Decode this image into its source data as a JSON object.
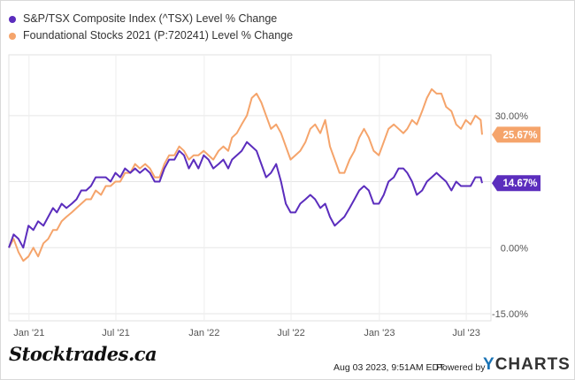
{
  "chart_data": {
    "type": "line",
    "legend_position": "top-left",
    "grid": "horizontal",
    "ylim": [
      -15,
      40
    ],
    "xlim": [
      "2020-11-20",
      "2023-08-03"
    ],
    "y_ticks": [
      {
        "value": 30,
        "label": "30.00%"
      },
      {
        "value": 15,
        "label": "15.00%"
      },
      {
        "value": 0,
        "label": "0.00%"
      },
      {
        "value": -15,
        "label": "-15.00%"
      }
    ],
    "x_ticks": [
      {
        "date": "2021-01-01",
        "label": "Jan '21"
      },
      {
        "date": "2021-07-01",
        "label": "Jul '21"
      },
      {
        "date": "2022-01-01",
        "label": "Jan '22"
      },
      {
        "date": "2022-07-01",
        "label": "Jul '22"
      },
      {
        "date": "2023-01-01",
        "label": "Jan '23"
      },
      {
        "date": "2023-07-01",
        "label": "Jul '23"
      }
    ],
    "series": [
      {
        "name": "S&P/TSX Composite Index (^TSX) Level % Change",
        "color": "#5b2dbd",
        "end_label": "14.67%",
        "points": [
          [
            "2020-11-20",
            0
          ],
          [
            "2020-11-30",
            3
          ],
          [
            "2020-12-10",
            2
          ],
          [
            "2020-12-20",
            0
          ],
          [
            "2020-12-31",
            5
          ],
          [
            "2021-01-10",
            4
          ],
          [
            "2021-01-20",
            6
          ],
          [
            "2021-01-31",
            5
          ],
          [
            "2021-02-10",
            7
          ],
          [
            "2021-02-20",
            9
          ],
          [
            "2021-02-28",
            8
          ],
          [
            "2021-03-10",
            10
          ],
          [
            "2021-03-20",
            9
          ],
          [
            "2021-03-31",
            10
          ],
          [
            "2021-04-10",
            11
          ],
          [
            "2021-04-20",
            13
          ],
          [
            "2021-04-30",
            13
          ],
          [
            "2021-05-10",
            14
          ],
          [
            "2021-05-20",
            16
          ],
          [
            "2021-05-31",
            16
          ],
          [
            "2021-06-10",
            16
          ],
          [
            "2021-06-20",
            15
          ],
          [
            "2021-06-30",
            17
          ],
          [
            "2021-07-10",
            16
          ],
          [
            "2021-07-20",
            18
          ],
          [
            "2021-07-31",
            17
          ],
          [
            "2021-08-10",
            18
          ],
          [
            "2021-08-20",
            17
          ],
          [
            "2021-08-31",
            18
          ],
          [
            "2021-09-10",
            17
          ],
          [
            "2021-09-20",
            15
          ],
          [
            "2021-09-30",
            15
          ],
          [
            "2021-10-10",
            18
          ],
          [
            "2021-10-20",
            20
          ],
          [
            "2021-10-31",
            20
          ],
          [
            "2021-11-10",
            22
          ],
          [
            "2021-11-20",
            21
          ],
          [
            "2021-11-30",
            18
          ],
          [
            "2021-12-10",
            20
          ],
          [
            "2021-12-20",
            18
          ],
          [
            "2021-12-31",
            21
          ],
          [
            "2022-01-10",
            20
          ],
          [
            "2022-01-20",
            18
          ],
          [
            "2022-01-31",
            19
          ],
          [
            "2022-02-10",
            20
          ],
          [
            "2022-02-20",
            18
          ],
          [
            "2022-02-28",
            20
          ],
          [
            "2022-03-10",
            21
          ],
          [
            "2022-03-20",
            22
          ],
          [
            "2022-03-31",
            24
          ],
          [
            "2022-04-10",
            23
          ],
          [
            "2022-04-20",
            22
          ],
          [
            "2022-04-30",
            19
          ],
          [
            "2022-05-10",
            16
          ],
          [
            "2022-05-20",
            17
          ],
          [
            "2022-05-31",
            19
          ],
          [
            "2022-06-10",
            15
          ],
          [
            "2022-06-20",
            10
          ],
          [
            "2022-06-30",
            8
          ],
          [
            "2022-07-10",
            8
          ],
          [
            "2022-07-20",
            10
          ],
          [
            "2022-07-31",
            11
          ],
          [
            "2022-08-10",
            12
          ],
          [
            "2022-08-20",
            11
          ],
          [
            "2022-08-31",
            9
          ],
          [
            "2022-09-10",
            10
          ],
          [
            "2022-09-20",
            7
          ],
          [
            "2022-09-30",
            5
          ],
          [
            "2022-10-10",
            6
          ],
          [
            "2022-10-20",
            7
          ],
          [
            "2022-10-31",
            9
          ],
          [
            "2022-11-10",
            11
          ],
          [
            "2022-11-20",
            13
          ],
          [
            "2022-11-30",
            14
          ],
          [
            "2022-12-10",
            13
          ],
          [
            "2022-12-20",
            10
          ],
          [
            "2022-12-31",
            10
          ],
          [
            "2023-01-10",
            12
          ],
          [
            "2023-01-20",
            15
          ],
          [
            "2023-01-31",
            16
          ],
          [
            "2023-02-10",
            18
          ],
          [
            "2023-02-20",
            18
          ],
          [
            "2023-02-28",
            17
          ],
          [
            "2023-03-10",
            15
          ],
          [
            "2023-03-20",
            12
          ],
          [
            "2023-03-31",
            13
          ],
          [
            "2023-04-10",
            15
          ],
          [
            "2023-04-20",
            16
          ],
          [
            "2023-04-30",
            17
          ],
          [
            "2023-05-10",
            16
          ],
          [
            "2023-05-20",
            15
          ],
          [
            "2023-05-31",
            13
          ],
          [
            "2023-06-10",
            15
          ],
          [
            "2023-06-20",
            14
          ],
          [
            "2023-06-30",
            14
          ],
          [
            "2023-07-10",
            14
          ],
          [
            "2023-07-20",
            16
          ],
          [
            "2023-07-31",
            16
          ],
          [
            "2023-08-03",
            14.67
          ]
        ]
      },
      {
        "name": "Foundational Stocks 2021 (P:720241) Level % Change",
        "color": "#f5a46b",
        "end_label": "25.67%",
        "points": [
          [
            "2020-11-20",
            0
          ],
          [
            "2020-11-30",
            2
          ],
          [
            "2020-12-10",
            -1
          ],
          [
            "2020-12-20",
            -3
          ],
          [
            "2020-12-31",
            -2
          ],
          [
            "2021-01-10",
            0
          ],
          [
            "2021-01-20",
            -2
          ],
          [
            "2021-01-31",
            1
          ],
          [
            "2021-02-10",
            2
          ],
          [
            "2021-02-20",
            4
          ],
          [
            "2021-02-28",
            4
          ],
          [
            "2021-03-10",
            6
          ],
          [
            "2021-03-20",
            7
          ],
          [
            "2021-03-31",
            8
          ],
          [
            "2021-04-10",
            9
          ],
          [
            "2021-04-20",
            10
          ],
          [
            "2021-04-30",
            11
          ],
          [
            "2021-05-10",
            11
          ],
          [
            "2021-05-20",
            13
          ],
          [
            "2021-05-31",
            12
          ],
          [
            "2021-06-10",
            14
          ],
          [
            "2021-06-20",
            14
          ],
          [
            "2021-06-30",
            15
          ],
          [
            "2021-07-10",
            15
          ],
          [
            "2021-07-20",
            17
          ],
          [
            "2021-07-31",
            17
          ],
          [
            "2021-08-10",
            19
          ],
          [
            "2021-08-20",
            18
          ],
          [
            "2021-08-31",
            19
          ],
          [
            "2021-09-10",
            18
          ],
          [
            "2021-09-20",
            16
          ],
          [
            "2021-09-30",
            16
          ],
          [
            "2021-10-10",
            19
          ],
          [
            "2021-10-20",
            21
          ],
          [
            "2021-10-31",
            21
          ],
          [
            "2021-11-10",
            23
          ],
          [
            "2021-11-20",
            22
          ],
          [
            "2021-11-30",
            20
          ],
          [
            "2021-12-10",
            21
          ],
          [
            "2021-12-20",
            21
          ],
          [
            "2021-12-31",
            22
          ],
          [
            "2022-01-10",
            21
          ],
          [
            "2022-01-20",
            20
          ],
          [
            "2022-01-31",
            22
          ],
          [
            "2022-02-10",
            23
          ],
          [
            "2022-02-20",
            22
          ],
          [
            "2022-02-28",
            25
          ],
          [
            "2022-03-10",
            26
          ],
          [
            "2022-03-20",
            28
          ],
          [
            "2022-03-31",
            30
          ],
          [
            "2022-04-10",
            34
          ],
          [
            "2022-04-20",
            35
          ],
          [
            "2022-04-30",
            33
          ],
          [
            "2022-05-10",
            30
          ],
          [
            "2022-05-20",
            27
          ],
          [
            "2022-05-31",
            28
          ],
          [
            "2022-06-10",
            26
          ],
          [
            "2022-06-20",
            23
          ],
          [
            "2022-06-30",
            20
          ],
          [
            "2022-07-10",
            21
          ],
          [
            "2022-07-20",
            22
          ],
          [
            "2022-07-31",
            24
          ],
          [
            "2022-08-10",
            27
          ],
          [
            "2022-08-20",
            28
          ],
          [
            "2022-08-31",
            26
          ],
          [
            "2022-09-10",
            29
          ],
          [
            "2022-09-20",
            23
          ],
          [
            "2022-09-30",
            20
          ],
          [
            "2022-10-10",
            17
          ],
          [
            "2022-10-20",
            17
          ],
          [
            "2022-10-31",
            20
          ],
          [
            "2022-11-10",
            22
          ],
          [
            "2022-11-20",
            25
          ],
          [
            "2022-11-30",
            27
          ],
          [
            "2022-12-10",
            25
          ],
          [
            "2022-12-20",
            22
          ],
          [
            "2022-12-31",
            21
          ],
          [
            "2023-01-10",
            24
          ],
          [
            "2023-01-20",
            27
          ],
          [
            "2023-01-31",
            28
          ],
          [
            "2023-02-10",
            27
          ],
          [
            "2023-02-20",
            26
          ],
          [
            "2023-02-28",
            27
          ],
          [
            "2023-03-10",
            29
          ],
          [
            "2023-03-20",
            28
          ],
          [
            "2023-03-31",
            31
          ],
          [
            "2023-04-10",
            34
          ],
          [
            "2023-04-20",
            36
          ],
          [
            "2023-04-30",
            35
          ],
          [
            "2023-05-10",
            35
          ],
          [
            "2023-05-20",
            32
          ],
          [
            "2023-05-31",
            31
          ],
          [
            "2023-06-10",
            28
          ],
          [
            "2023-06-20",
            27
          ],
          [
            "2023-06-30",
            29
          ],
          [
            "2023-07-10",
            28
          ],
          [
            "2023-07-20",
            30
          ],
          [
            "2023-07-31",
            29
          ],
          [
            "2023-08-03",
            25.67
          ]
        ]
      }
    ]
  },
  "footer": {
    "brand": "Stocktrades.ca",
    "timestamp": "Aug 03 2023, 9:51AM EDT.",
    "powered_by": "Powered by",
    "ycharts_y": "Y",
    "ycharts_rest": "CHARTS"
  }
}
